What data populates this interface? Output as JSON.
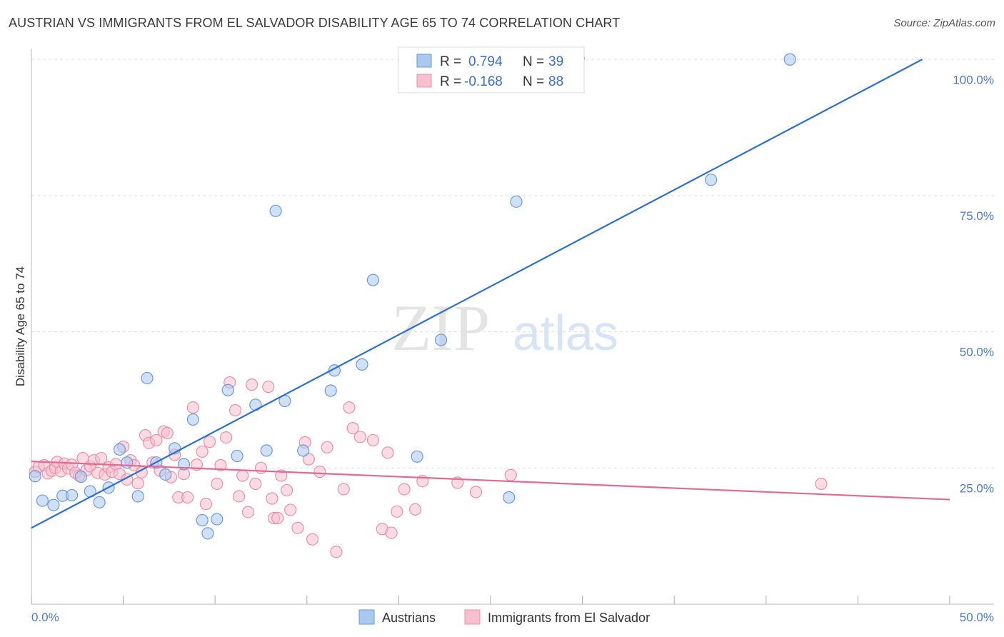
{
  "title": "AUSTRIAN VS IMMIGRANTS FROM EL SALVADOR DISABILITY AGE 65 TO 74 CORRELATION CHART",
  "source": "Source: ZipAtlas.com",
  "watermark": {
    "zip": "ZIP",
    "atlas": "atlas"
  },
  "colors": {
    "blue_fill": "#aac8f0",
    "blue_stroke": "#6a9ad8",
    "blue_line": "#2f6fcc",
    "pink_fill": "#f7bfd0",
    "pink_stroke": "#e890aa",
    "pink_line": "#e06a94",
    "tick_text": "#4a7ac9",
    "grid": "#dddddd"
  },
  "legend": {
    "rows": [
      {
        "r_label": "R =",
        "r_value": "0.794",
        "n_label": "N =",
        "n_value": "39",
        "series": "blue"
      },
      {
        "r_label": "R =",
        "r_value": "-0.168",
        "n_label": "N =",
        "n_value": "88",
        "series": "pink"
      }
    ]
  },
  "bottom_legend": [
    {
      "label": "Austrians",
      "series": "blue"
    },
    {
      "label": "Immigrants from El Salvador",
      "series": "pink"
    }
  ],
  "chart_data": {
    "type": "scatter",
    "ylabel": "Disability Age 65 to 74",
    "xlim": [
      0,
      50
    ],
    "ylim": [
      0,
      102
    ],
    "x_tick_labels": [
      "0.0%",
      "50.0%"
    ],
    "y_ticks": [
      25,
      50,
      75,
      100
    ],
    "y_tick_labels": [
      "25.0%",
      "50.0%",
      "75.0%",
      "100.0%"
    ],
    "grid": true,
    "series": [
      {
        "name": "Austrians",
        "color": "blue",
        "trend": {
          "x": [
            0,
            48.5
          ],
          "y": [
            14,
            100
          ]
        },
        "points": [
          [
            0.2,
            23.5
          ],
          [
            0.6,
            19.0
          ],
          [
            1.2,
            18.2
          ],
          [
            1.7,
            19.9
          ],
          [
            2.2,
            20.0
          ],
          [
            2.7,
            23.4
          ],
          [
            3.2,
            20.7
          ],
          [
            3.7,
            18.7
          ],
          [
            4.2,
            21.4
          ],
          [
            4.8,
            28.4
          ],
          [
            5.2,
            26.0
          ],
          [
            5.8,
            19.8
          ],
          [
            6.3,
            41.5
          ],
          [
            6.8,
            26.0
          ],
          [
            7.3,
            23.8
          ],
          [
            7.8,
            28.6
          ],
          [
            8.3,
            25.7
          ],
          [
            8.8,
            33.9
          ],
          [
            9.3,
            15.4
          ],
          [
            9.6,
            13.0
          ],
          [
            10.1,
            15.6
          ],
          [
            10.7,
            39.3
          ],
          [
            11.2,
            27.2
          ],
          [
            12.2,
            36.6
          ],
          [
            12.8,
            28.2
          ],
          [
            13.3,
            72.2
          ],
          [
            13.8,
            37.3
          ],
          [
            14.8,
            28.2
          ],
          [
            16.3,
            39.2
          ],
          [
            16.5,
            42.9
          ],
          [
            18.0,
            44.0
          ],
          [
            18.6,
            59.5
          ],
          [
            21.0,
            27.1
          ],
          [
            22.3,
            48.5
          ],
          [
            26.0,
            19.6
          ],
          [
            29.8,
            100.2
          ],
          [
            26.4,
            73.9
          ],
          [
            37.0,
            77.9
          ],
          [
            41.3,
            100.0
          ]
        ]
      },
      {
        "name": "Immigrants from El Salvador",
        "color": "pink",
        "trend": {
          "x": [
            0,
            50
          ],
          "y": [
            26.2,
            19.2
          ]
        },
        "points": [
          [
            0.2,
            24.3
          ],
          [
            0.4,
            25.2
          ],
          [
            0.7,
            25.5
          ],
          [
            0.9,
            24.0
          ],
          [
            1.1,
            24.5
          ],
          [
            1.3,
            25.0
          ],
          [
            1.4,
            26.1
          ],
          [
            1.6,
            24.4
          ],
          [
            1.8,
            25.8
          ],
          [
            2.0,
            24.9
          ],
          [
            2.2,
            25.6
          ],
          [
            2.4,
            24.1
          ],
          [
            2.6,
            23.6
          ],
          [
            2.8,
            26.8
          ],
          [
            3.0,
            24.6
          ],
          [
            3.2,
            25.3
          ],
          [
            3.4,
            26.4
          ],
          [
            3.6,
            24.1
          ],
          [
            3.8,
            26.8
          ],
          [
            4.0,
            23.8
          ],
          [
            4.2,
            25.1
          ],
          [
            4.4,
            24.3
          ],
          [
            4.6,
            25.7
          ],
          [
            4.8,
            23.9
          ],
          [
            5.0,
            28.9
          ],
          [
            5.2,
            22.9
          ],
          [
            5.4,
            26.4
          ],
          [
            5.6,
            25.5
          ],
          [
            5.8,
            22.2
          ],
          [
            6.0,
            24.2
          ],
          [
            6.2,
            31.0
          ],
          [
            6.4,
            29.6
          ],
          [
            6.6,
            26.0
          ],
          [
            6.8,
            30.1
          ],
          [
            7.0,
            24.5
          ],
          [
            7.2,
            31.7
          ],
          [
            7.4,
            31.4
          ],
          [
            7.6,
            23.3
          ],
          [
            7.8,
            27.4
          ],
          [
            8.0,
            19.6
          ],
          [
            8.3,
            23.9
          ],
          [
            8.5,
            19.6
          ],
          [
            8.8,
            36.1
          ],
          [
            9.0,
            25.6
          ],
          [
            9.3,
            28.0
          ],
          [
            9.5,
            18.4
          ],
          [
            9.7,
            29.8
          ],
          [
            10.1,
            22.1
          ],
          [
            10.3,
            25.5
          ],
          [
            10.6,
            30.6
          ],
          [
            10.8,
            40.7
          ],
          [
            11.1,
            35.6
          ],
          [
            11.3,
            19.8
          ],
          [
            11.5,
            23.6
          ],
          [
            11.8,
            16.9
          ],
          [
            12.0,
            40.3
          ],
          [
            12.2,
            22.1
          ],
          [
            12.5,
            25.0
          ],
          [
            12.9,
            39.9
          ],
          [
            13.1,
            19.4
          ],
          [
            13.2,
            15.8
          ],
          [
            13.4,
            15.8
          ],
          [
            13.6,
            23.6
          ],
          [
            13.9,
            20.9
          ],
          [
            14.1,
            17.3
          ],
          [
            14.5,
            14.0
          ],
          [
            14.9,
            29.7
          ],
          [
            15.1,
            26.6
          ],
          [
            15.3,
            11.9
          ],
          [
            15.7,
            24.3
          ],
          [
            16.1,
            28.8
          ],
          [
            16.6,
            9.6
          ],
          [
            17.3,
            36.1
          ],
          [
            17.5,
            32.3
          ],
          [
            17.0,
            21.1
          ],
          [
            17.9,
            30.7
          ],
          [
            18.6,
            30.1
          ],
          [
            19.1,
            13.8
          ],
          [
            19.4,
            27.8
          ],
          [
            19.6,
            13.1
          ],
          [
            19.9,
            17.0
          ],
          [
            20.3,
            21.1
          ],
          [
            20.9,
            17.4
          ],
          [
            21.3,
            22.6
          ],
          [
            23.2,
            22.3
          ],
          [
            24.2,
            20.6
          ],
          [
            26.1,
            23.7
          ],
          [
            43.0,
            22.1
          ]
        ]
      }
    ]
  }
}
